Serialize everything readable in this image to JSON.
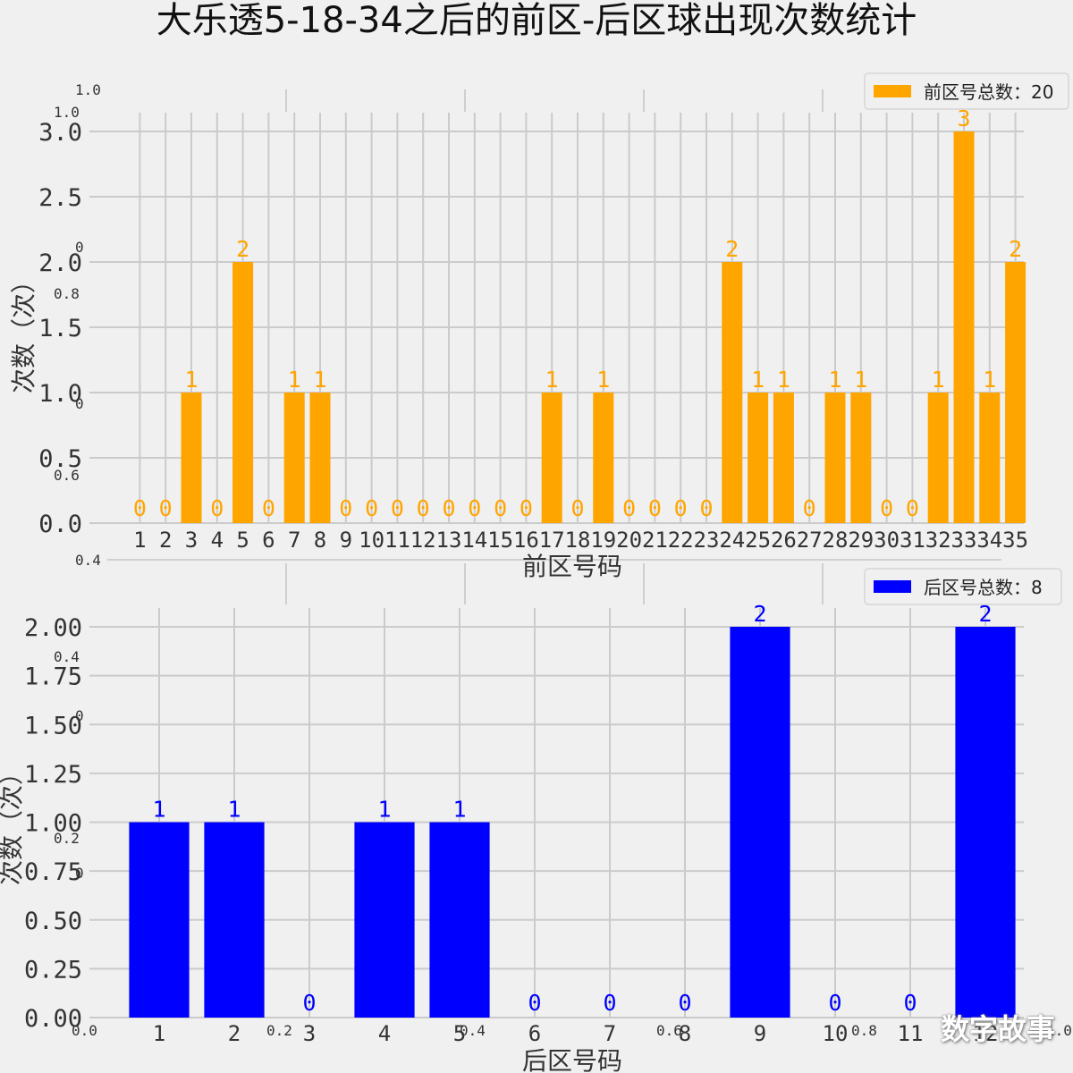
{
  "title": "大乐透5-18-34之后的前区-后区球出现次数统计",
  "watermark": "数字故事",
  "chart_data": [
    {
      "type": "bar",
      "id": "front",
      "categories": [
        "1",
        "2",
        "3",
        "4",
        "5",
        "6",
        "7",
        "8",
        "9",
        "10",
        "11",
        "12",
        "13",
        "14",
        "15",
        "16",
        "17",
        "18",
        "19",
        "20",
        "21",
        "22",
        "23",
        "24",
        "25",
        "26",
        "27",
        "28",
        "29",
        "30",
        "31",
        "32",
        "33",
        "34",
        "35"
      ],
      "values": [
        0,
        0,
        1,
        0,
        2,
        0,
        1,
        1,
        0,
        0,
        0,
        0,
        0,
        0,
        0,
        0,
        1,
        0,
        1,
        0,
        0,
        0,
        0,
        2,
        1,
        1,
        0,
        1,
        1,
        0,
        0,
        1,
        3,
        1,
        2
      ],
      "color": "#ffa500",
      "xlabel": "前区号码",
      "ylabel": "次数（次）",
      "yticks": [
        "0.0",
        "0.5",
        "1.0",
        "1.5",
        "2.0",
        "2.5",
        "3.0"
      ],
      "ylim": [
        0,
        3.0
      ],
      "legend": "前区号总数：20",
      "legend_position": "top-right",
      "grid": true
    },
    {
      "type": "bar",
      "id": "back",
      "categories": [
        "1",
        "2",
        "3",
        "4",
        "5",
        "6",
        "7",
        "8",
        "9",
        "10",
        "11",
        "12"
      ],
      "values": [
        1,
        1,
        0,
        1,
        1,
        0,
        0,
        0,
        2,
        0,
        0,
        2
      ],
      "color": "#0000ff",
      "xlabel": "后区号码",
      "ylabel": "次数（次）",
      "yticks": [
        "0.00",
        "0.25",
        "0.50",
        "0.75",
        "1.00",
        "1.25",
        "1.50",
        "1.75",
        "2.00"
      ],
      "ylim": [
        0,
        2.0
      ],
      "legend": "后区号总数：8",
      "legend_position": "top-right",
      "grid": true
    }
  ],
  "background_axes": {
    "yticks": [
      "0.0",
      "0.2",
      "0.4",
      "0.6",
      "0.8",
      "1.0"
    ],
    "xticks": [
      "0.0",
      "0.2",
      "0.4",
      "0.6",
      "0.8",
      "1.0"
    ],
    "ytick_labels_top": [
      "0.4",
      "0.6",
      "0.8",
      "1.0"
    ],
    "zero_label": "0"
  }
}
